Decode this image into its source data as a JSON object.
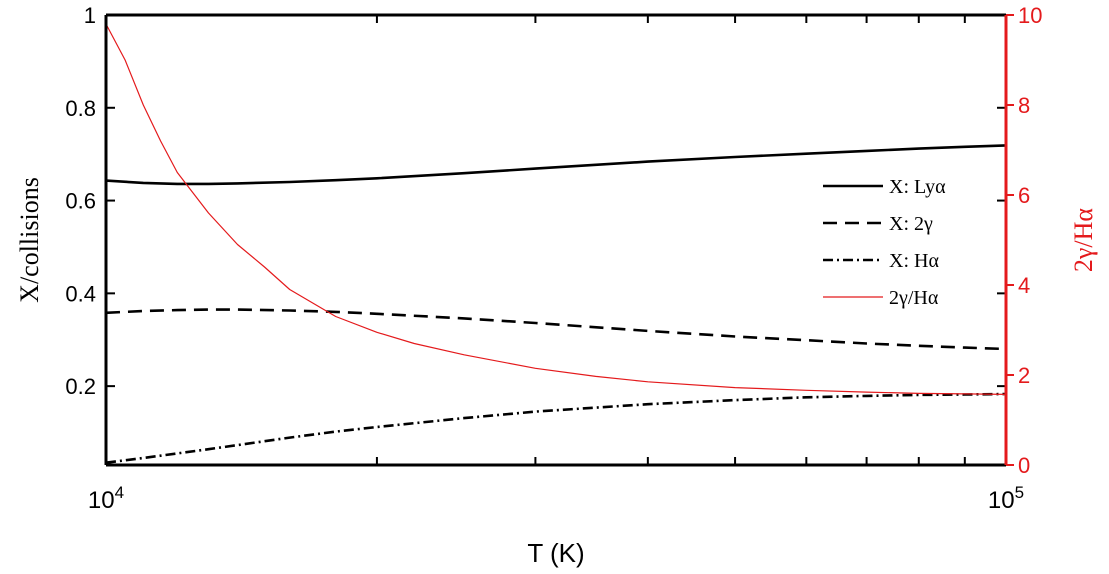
{
  "chart_data": {
    "type": "line",
    "xlabel": "T (K)",
    "ylabel_left": "X/collisions",
    "ylabel_right": "2γ/Hα",
    "xscale": "log",
    "xlim": [
      10000,
      100000
    ],
    "ylim_left": [
      0.03,
      1.0
    ],
    "ylim_right": [
      0,
      10
    ],
    "x_ticks": [
      {
        "value": 10000,
        "base": "10",
        "exp": "4"
      },
      {
        "value": 100000,
        "base": "10",
        "exp": "5"
      }
    ],
    "y_ticks_left": [
      {
        "value": 0.2,
        "label": "0.2"
      },
      {
        "value": 0.4,
        "label": "0.4"
      },
      {
        "value": 0.6,
        "label": "0.6"
      },
      {
        "value": 0.8,
        "label": "0.8"
      },
      {
        "value": 1.0,
        "label": "1"
      }
    ],
    "y_ticks_right": [
      {
        "value": 0,
        "label": "0"
      },
      {
        "value": 2,
        "label": "2"
      },
      {
        "value": 4,
        "label": "4"
      },
      {
        "value": 6,
        "label": "6"
      },
      {
        "value": 8,
        "label": "8"
      },
      {
        "value": 10,
        "label": "10"
      }
    ],
    "grid": false,
    "legend_position": "right",
    "series": [
      {
        "name": "X: Lyα",
        "axis": "left",
        "color": "#000000",
        "dash": "solid",
        "x": [
          10000,
          11000,
          12000,
          13000,
          14000,
          16000,
          18000,
          20000,
          25000,
          30000,
          40000,
          50000,
          60000,
          70000,
          80000,
          90000,
          100000
        ],
        "y": [
          0.643,
          0.638,
          0.636,
          0.636,
          0.637,
          0.64,
          0.644,
          0.648,
          0.659,
          0.669,
          0.684,
          0.694,
          0.701,
          0.707,
          0.712,
          0.716,
          0.719
        ]
      },
      {
        "name": "X: 2γ",
        "axis": "left",
        "color": "#000000",
        "dash": "dashed",
        "x": [
          10000,
          11000,
          12000,
          13000,
          14000,
          16000,
          18000,
          20000,
          25000,
          30000,
          40000,
          50000,
          60000,
          70000,
          80000,
          90000,
          100000
        ],
        "y": [
          0.358,
          0.362,
          0.364,
          0.365,
          0.365,
          0.363,
          0.36,
          0.356,
          0.346,
          0.336,
          0.319,
          0.307,
          0.299,
          0.292,
          0.287,
          0.283,
          0.28
        ]
      },
      {
        "name": "X: Hα",
        "axis": "left",
        "color": "#000000",
        "dash": "dashdot",
        "x": [
          10000,
          11000,
          12000,
          13000,
          14000,
          16000,
          18000,
          20000,
          25000,
          30000,
          40000,
          50000,
          60000,
          70000,
          80000,
          90000,
          100000
        ],
        "y": [
          0.035,
          0.045,
          0.055,
          0.064,
          0.073,
          0.089,
          0.102,
          0.112,
          0.131,
          0.145,
          0.161,
          0.17,
          0.176,
          0.179,
          0.181,
          0.182,
          0.183
        ]
      },
      {
        "name": "2γ/Hα",
        "axis": "right",
        "color": "#e41a1c",
        "dash": "solid",
        "x": [
          10000,
          10500,
          11000,
          11500,
          12000,
          13000,
          14000,
          15000,
          16000,
          18000,
          20000,
          22000,
          25000,
          30000,
          35000,
          40000,
          50000,
          60000,
          70000,
          80000,
          90000,
          100000
        ],
        "y": [
          9.8,
          9.0,
          8.0,
          7.2,
          6.5,
          5.6,
          4.9,
          4.4,
          3.9,
          3.3,
          2.95,
          2.7,
          2.45,
          2.15,
          1.97,
          1.85,
          1.72,
          1.66,
          1.62,
          1.59,
          1.58,
          1.57
        ]
      }
    ]
  }
}
